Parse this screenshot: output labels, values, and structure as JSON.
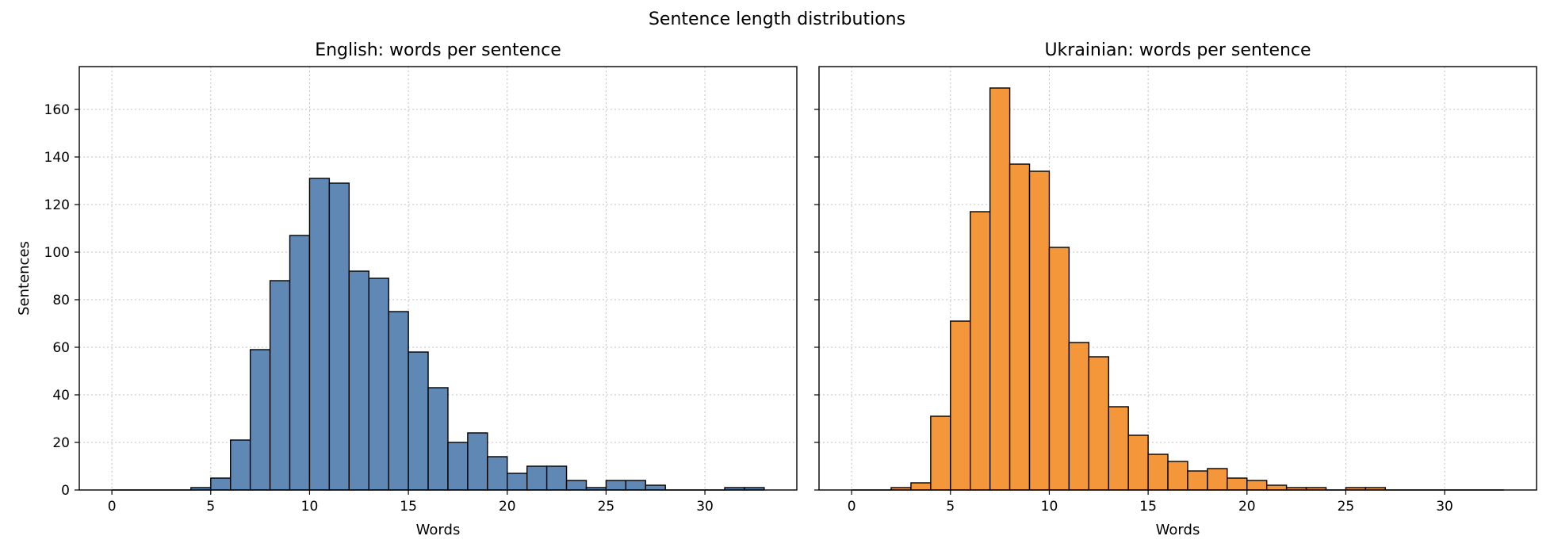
{
  "suptitle": "Sentence length distributions",
  "chart_data": [
    {
      "type": "bar",
      "title": "English: words per sentence",
      "xlabel": "Words",
      "ylabel": "Sentences",
      "bin_edges": [
        0,
        1,
        2,
        3,
        4,
        5,
        6,
        7,
        8,
        9,
        10,
        11,
        12,
        13,
        14,
        15,
        16,
        17,
        18,
        19,
        20,
        21,
        22,
        23,
        24,
        25,
        26,
        27,
        28,
        29,
        30,
        31,
        32,
        33
      ],
      "values": [
        0,
        0,
        0,
        0,
        1,
        5,
        21,
        59,
        88,
        107,
        131,
        129,
        92,
        89,
        75,
        58,
        43,
        20,
        24,
        14,
        7,
        10,
        10,
        4,
        1,
        4,
        4,
        2,
        0,
        0,
        0,
        1,
        1
      ],
      "color": "#6088b4",
      "xlim": [
        -1.65,
        34.65
      ],
      "ylim": [
        0,
        178
      ],
      "xticks": [
        0,
        5,
        10,
        15,
        20,
        25,
        30
      ],
      "yticks": [
        0,
        20,
        40,
        60,
        80,
        100,
        120,
        140,
        160
      ],
      "grid": true
    },
    {
      "type": "bar",
      "title": "Ukrainian: words per sentence",
      "xlabel": "Words",
      "ylabel": "",
      "bin_edges": [
        0,
        1,
        2,
        3,
        4,
        5,
        6,
        7,
        8,
        9,
        10,
        11,
        12,
        13,
        14,
        15,
        16,
        17,
        18,
        19,
        20,
        21,
        22,
        23,
        24,
        25,
        26,
        27,
        28,
        29,
        30,
        31,
        32,
        33
      ],
      "values": [
        0,
        0,
        1,
        3,
        31,
        71,
        117,
        169,
        137,
        134,
        102,
        62,
        56,
        35,
        23,
        15,
        12,
        8,
        9,
        5,
        4,
        2,
        1,
        1,
        0,
        1,
        1,
        0,
        0,
        0,
        0,
        0,
        0
      ],
      "color": "#f3973a",
      "xlim": [
        -1.65,
        34.65
      ],
      "ylim": [
        0,
        178
      ],
      "xticks": [
        0,
        5,
        10,
        15,
        20,
        25,
        30
      ],
      "yticks": [
        0,
        20,
        40,
        60,
        80,
        100,
        120,
        140,
        160
      ],
      "grid": true
    }
  ]
}
